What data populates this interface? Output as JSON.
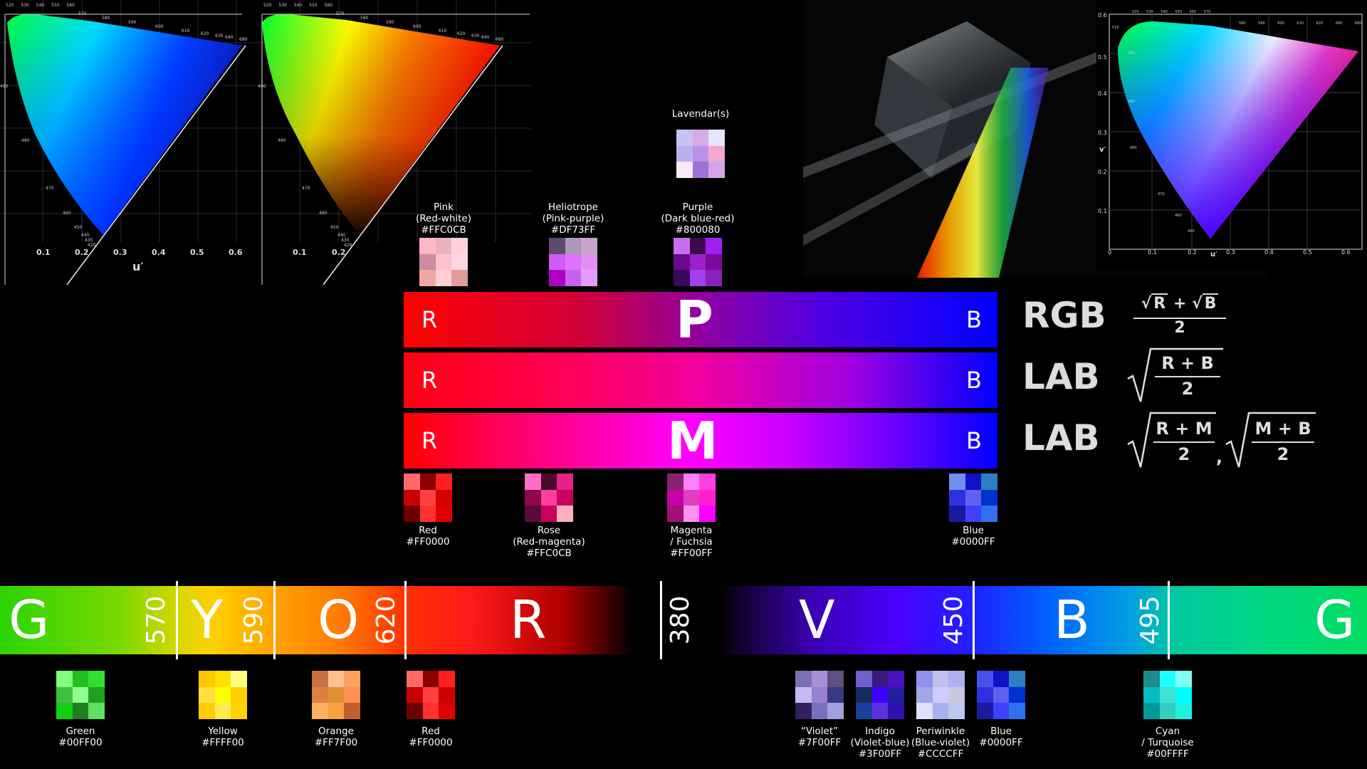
{
  "cie_left": {
    "axis_label": "u′",
    "ticks": [
      "0.1",
      "0.2",
      "0.3",
      "0.4",
      "0.5",
      "0.6"
    ],
    "wavelengths": [
      "520",
      "530",
      "540",
      "550",
      "560",
      "570",
      "580",
      "590",
      "600",
      "610",
      "620",
      "630",
      "640",
      "680",
      "490",
      "480",
      "470",
      "460",
      "450",
      "440",
      "430",
      "420"
    ]
  },
  "cie_middle": {
    "ticks": [
      "0.1",
      "0.2"
    ],
    "wavelengths": [
      "520",
      "530",
      "540",
      "550",
      "560",
      "570",
      "580",
      "590",
      "600",
      "610",
      "620",
      "630",
      "640",
      "680",
      "490",
      "480",
      "470",
      "460",
      "450",
      "440",
      "430",
      "420"
    ]
  },
  "cie_right": {
    "axis_label_x": "u′",
    "axis_label_y": "v′",
    "ticks_x": [
      "0",
      "0.1",
      "0.2",
      "0.3",
      "0.4",
      "0.5",
      "0.6"
    ],
    "ticks_y": [
      "0.6",
      "0.5",
      "0.4",
      "0.3",
      "0.2",
      "0.1"
    ],
    "wavelengths": [
      "520",
      "530",
      "540",
      "550",
      "560",
      "570",
      "580",
      "590",
      "600",
      "610",
      "620",
      "640",
      "680",
      "510",
      "500",
      "490",
      "480",
      "470",
      "460",
      "450"
    ]
  },
  "top_swatches": {
    "lavendar": {
      "label": "Lavendar(s)",
      "colors": [
        "#c7c2f5",
        "#d9a9e8",
        "#e6e6fa",
        "#b9b0f0",
        "#b892e6",
        "#f2a8d0",
        "#fbe9f7",
        "#9a73d4",
        "#d7a4e8"
      ]
    },
    "pink": {
      "label": "Pink\n(Red-white)\n#FFC0CB",
      "colors": [
        "#ffb7c5",
        "#e8b4b8",
        "#ffd1dc",
        "#c98f9f",
        "#ffc0cb",
        "#ffd7e0",
        "#f0a8a0",
        "#ffcfd4",
        "#e29a9a"
      ]
    },
    "heliotrope": {
      "label": "Heliotrope\n(Pink-purple)\n#DF73FF",
      "colors": [
        "#5e4a70",
        "#a89ab8",
        "#c8a2c8",
        "#d15cf5",
        "#df73ff",
        "#e28ff0",
        "#b000c8",
        "#c860f0",
        "#e59cff"
      ]
    },
    "purple": {
      "label": "Purple\n(Dark blue-red)\n#800080",
      "colors": [
        "#c86cf0",
        "#3a0a4a",
        "#a020f0",
        "#6a0a8a",
        "#9a20c8",
        "#7a0a9a",
        "#3a0a5a",
        "#a040f0",
        "#8a20c0"
      ]
    }
  },
  "bars": [
    {
      "left": "R",
      "center": "P",
      "right": "B",
      "space": "RGB"
    },
    {
      "left": "R",
      "center": "",
      "right": "B",
      "space": "LAB"
    },
    {
      "left": "R",
      "center": "M",
      "right": "B",
      "space": "LAB"
    }
  ],
  "formulas": {
    "rgb": {
      "a": "R",
      "b": "B",
      "den": "2"
    },
    "lab1": {
      "num": "R + B",
      "den": "2"
    },
    "lab2": {
      "num1": "R + M",
      "num2": "M + B",
      "den": "2",
      "sep": ","
    }
  },
  "mid_swatches": {
    "red": {
      "label": "Red\n#FF0000",
      "colors": [
        "#ff6b6b",
        "#8b0000",
        "#ff2020",
        "#c80000",
        "#ff4040",
        "#d00000",
        "#6a0000",
        "#ff3030",
        "#e00000"
      ]
    },
    "rose": {
      "label": "Rose\n(Red-magenta)\n#FFC0CB",
      "colors": [
        "#ff6ec7",
        "#4a0a2a",
        "#e8208a",
        "#8a0a4a",
        "#ff3fa0",
        "#c8005f",
        "#5a0a3a",
        "#c80060",
        "#ffb0c0"
      ]
    },
    "magenta": {
      "label": "Magenta\n/ Fuchsia\n#FF00FF",
      "colors": [
        "#8a2070",
        "#ff80ff",
        "#ff40e0",
        "#c800a8",
        "#e040c0",
        "#ff20d0",
        "#a0107a",
        "#ff90f0",
        "#ff00ff"
      ]
    },
    "blue": {
      "label": "Blue\n#0000FF",
      "colors": [
        "#7090f0",
        "#1010c8",
        "#2a80c0",
        "#3030e0",
        "#6060f0",
        "#0030d0",
        "#1a1aa0",
        "#4040ff",
        "#3070f0"
      ]
    }
  },
  "spectrum": {
    "letters": [
      "G",
      "Y",
      "O",
      "R",
      "V",
      "B",
      "G"
    ],
    "numbers": [
      "570",
      "590",
      "620",
      "380",
      "450",
      "495"
    ]
  },
  "bottom_swatches": {
    "green": {
      "label": "Green\n#00FF00",
      "colors": [
        "#80ff80",
        "#20c020",
        "#30e030",
        "#40c040",
        "#90ff90",
        "#20a020",
        "#10d010",
        "#208020",
        "#60e060"
      ]
    },
    "yellow": {
      "label": "Yellow\n#FFFF00",
      "colors": [
        "#ffc800",
        "#ffe000",
        "#ffff80",
        "#ffe040",
        "#ffff00",
        "#ffd000",
        "#ffcc00",
        "#ffea50",
        "#ffd400"
      ]
    },
    "orange": {
      "label": "Orange\n#FF7F00",
      "colors": [
        "#c87040",
        "#ffc090",
        "#ffa060",
        "#e08040",
        "#e09030",
        "#ff9050",
        "#ffb060",
        "#ffa040",
        "#c06030"
      ]
    },
    "red": {
      "label": "Red\n#FF0000",
      "colors": [
        "#ff6b6b",
        "#8b0000",
        "#ff2020",
        "#c80000",
        "#ff4040",
        "#d00000",
        "#6a0000",
        "#ff3030",
        "#e00000"
      ]
    },
    "violet": {
      "label": "“Violet”\n#7F00FF",
      "colors": [
        "#7a70b0",
        "#a890d8",
        "#605080",
        "#c8b8f0",
        "#9a80d0",
        "#3a3a80",
        "#302060",
        "#7a70c0",
        "#a0a0e0"
      ]
    },
    "indigo": {
      "label": "Indigo\n(Violet-blue)\n#3F00FF",
      "colors": [
        "#7060d0",
        "#3a1a80",
        "#4a10c0",
        "#1a2a60",
        "#3f00ff",
        "#2020a0",
        "#1a40a0",
        "#5a30e0",
        "#3010b0"
      ]
    },
    "periwinkle": {
      "label": "Periwinkle\n(Blue-violet)\n#CCCCFF",
      "colors": [
        "#9090f0",
        "#c0c0e8",
        "#b0b0f0",
        "#a0a8e8",
        "#ccccff",
        "#c8c8e0",
        "#e0e0ff",
        "#a8b0f0",
        "#c0c8f0"
      ]
    },
    "blue2": {
      "label": "Blue\n#0000FF",
      "colors": [
        "#4a50f0",
        "#1010c8",
        "#2a80c0",
        "#3030e0",
        "#6060f0",
        "#0030d0",
        "#1a1aa0",
        "#4040ff",
        "#3070f0"
      ]
    },
    "cyan": {
      "label": "Cyan\n/ Turquoise\n#00FFFF",
      "colors": [
        "#208a8a",
        "#20ffff",
        "#80fff0",
        "#00c0c0",
        "#40e0d0",
        "#00ffff",
        "#009a9a",
        "#30d0c0",
        "#20f0e0"
      ]
    }
  }
}
